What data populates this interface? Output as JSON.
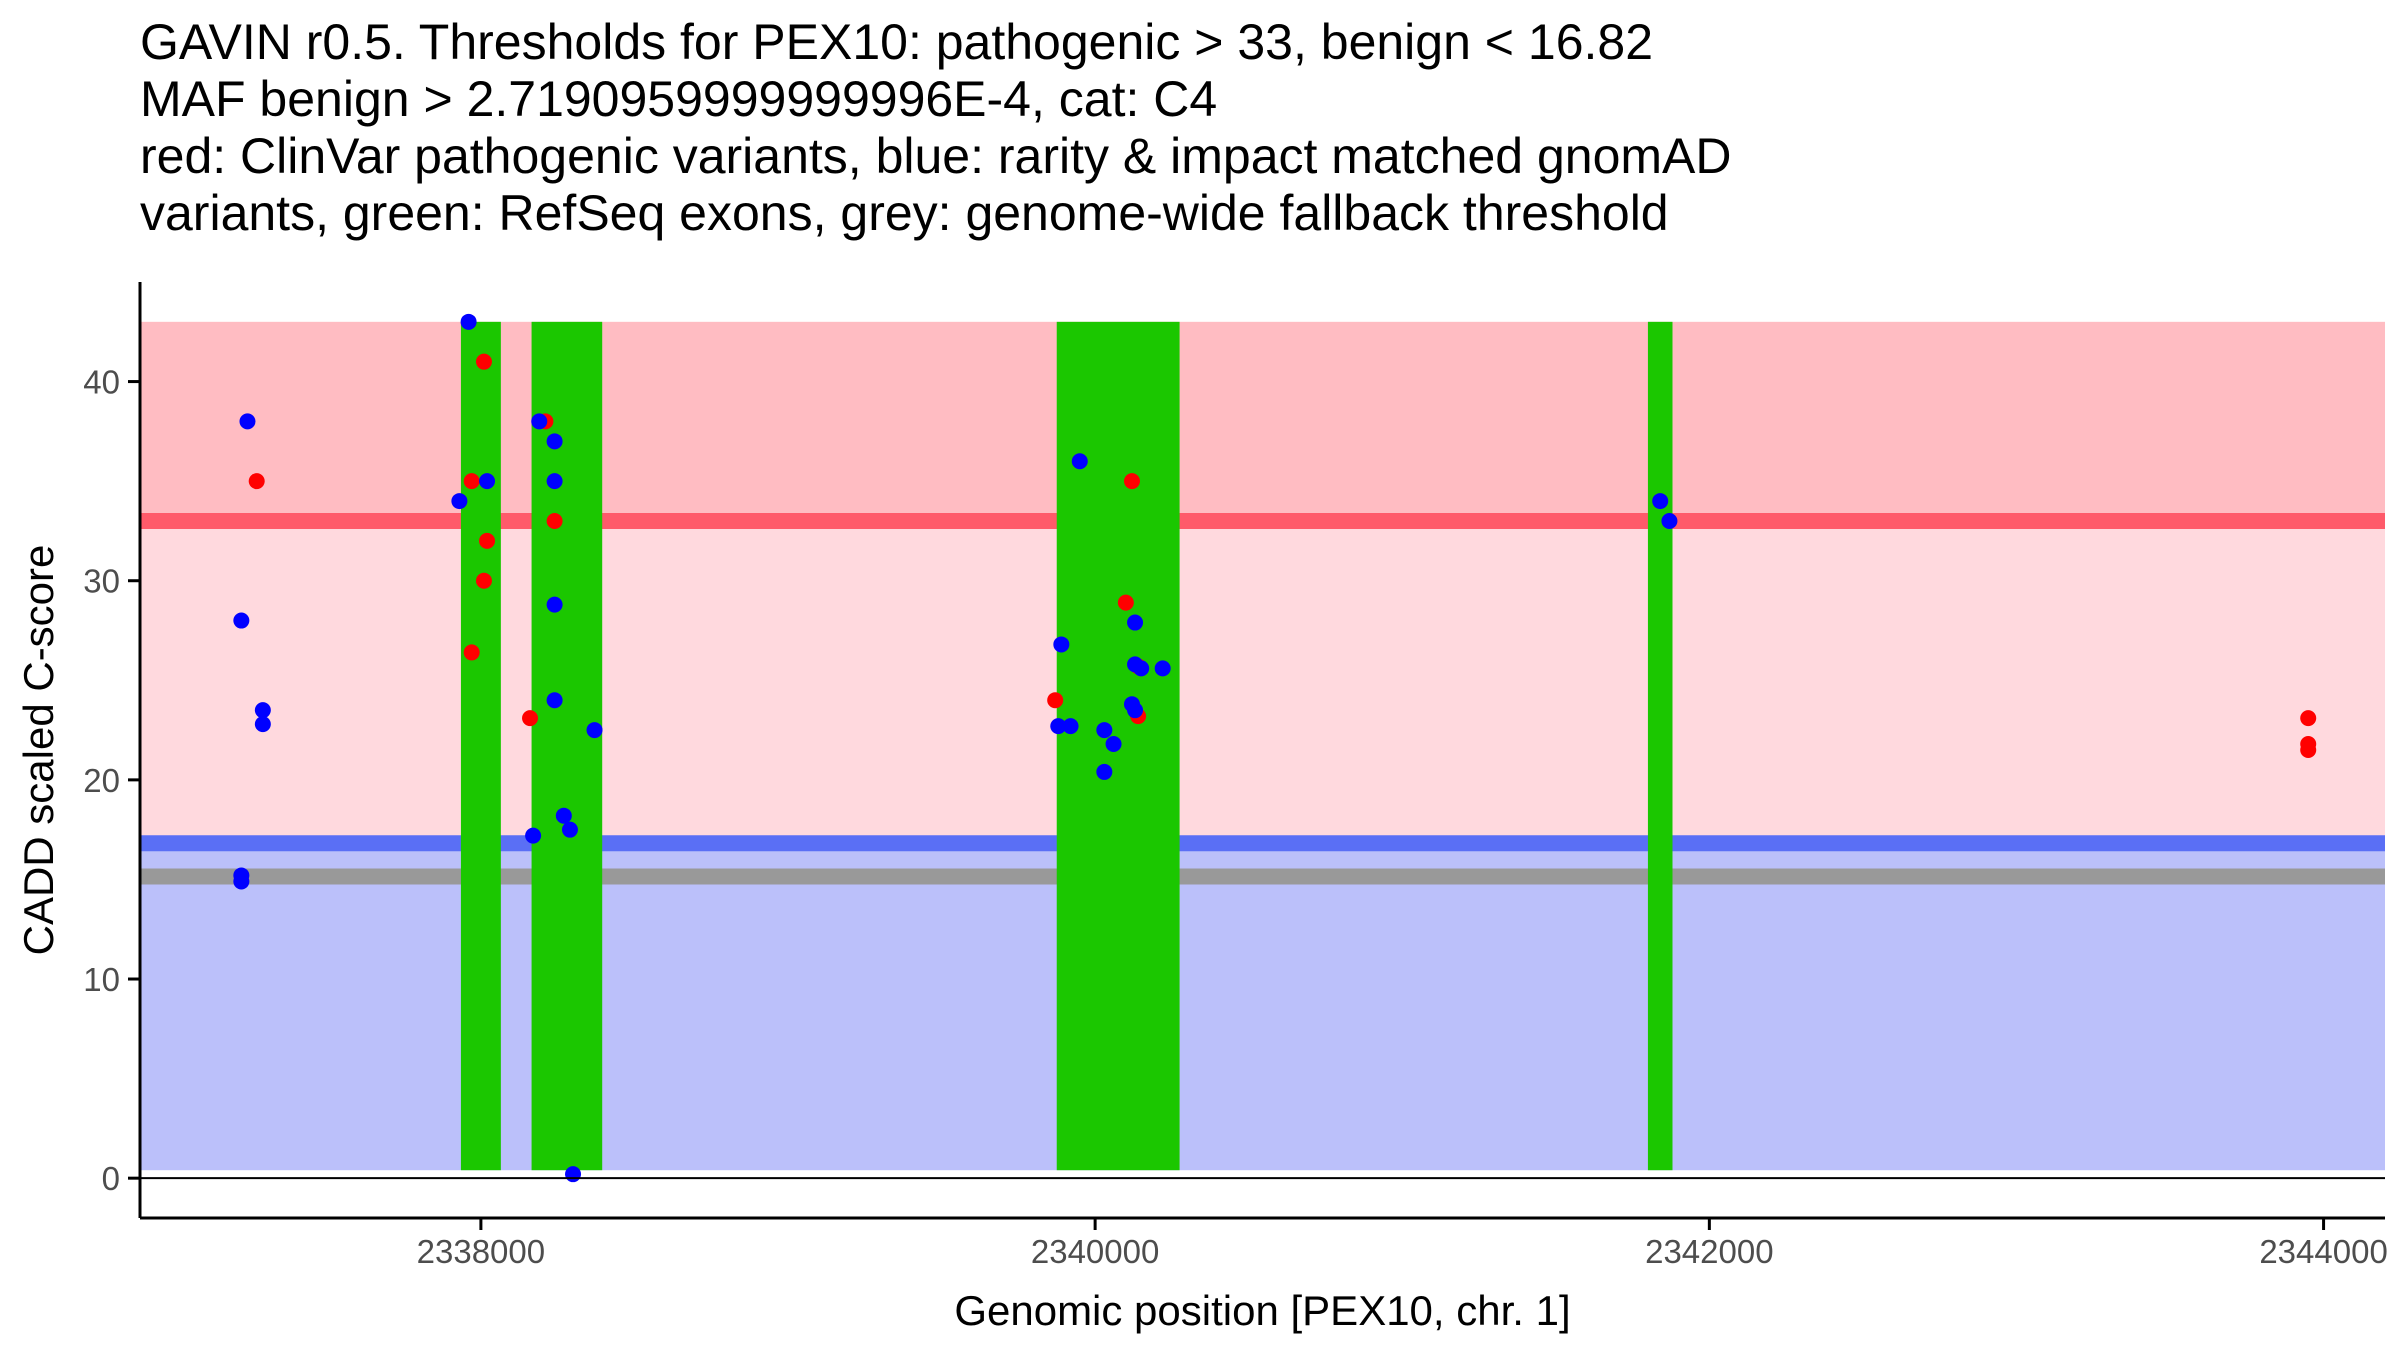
{
  "chart_data": {
    "type": "scatter",
    "title_lines": [
      "GAVIN r0.5. Thresholds for PEX10: pathogenic > 33, benign < 16.82",
      "MAF benign > 2.7190959999999996E-4, cat: C4",
      "red: ClinVar pathogenic variants, blue: rarity & impact matched gnomAD",
      "variants, green: RefSeq exons, grey: genome-wide fallback threshold"
    ],
    "xlabel": "Genomic position [PEX10, chr. 1]",
    "ylabel": "CADD scaled C-score",
    "xlim": [
      2336890,
      2344200
    ],
    "ylim": [
      -2.0,
      45.0
    ],
    "xticks": [
      2338000,
      2340000,
      2342000,
      2344000
    ],
    "xtick_labels": [
      "2338000",
      "2340000",
      "2342000",
      "2344000"
    ],
    "yticks": [
      0,
      10,
      20,
      30,
      40
    ],
    "ytick_labels": [
      "0",
      "10",
      "20",
      "30",
      "40"
    ],
    "thresholds": {
      "pathogenic": 33,
      "benign": 16.82,
      "fallback": 15.15
    },
    "bands": [
      {
        "name": "pathogenic-zone",
        "y0": 33,
        "y1": 43,
        "color": "#FFBCC2"
      },
      {
        "name": "uncertain-zone",
        "y0": 16.82,
        "y1": 33,
        "color": "#FFD9DE"
      },
      {
        "name": "benign-zone",
        "y0": 0.4,
        "y1": 16.82,
        "color": "#BBC0FA"
      }
    ],
    "exons": [
      {
        "start": 2337935,
        "end": 2338065
      },
      {
        "start": 2338165,
        "end": 2338395
      },
      {
        "start": 2339875,
        "end": 2340275
      },
      {
        "start": 2341800,
        "end": 2341880
      }
    ],
    "series": [
      {
        "name": "ClinVar pathogenic variants",
        "color": "#FF0000",
        "points": [
          [
            2337270,
            35
          ],
          [
            2337970,
            35
          ],
          [
            2338010,
            41
          ],
          [
            2338020,
            32
          ],
          [
            2338010,
            30
          ],
          [
            2337970,
            26.4
          ],
          [
            2338160,
            23.1
          ],
          [
            2338210,
            38
          ],
          [
            2338240,
            33
          ],
          [
            2339870,
            24
          ],
          [
            2340100,
            28.9
          ],
          [
            2340120,
            35
          ],
          [
            2340140,
            25.7
          ],
          [
            2340140,
            23.2
          ],
          [
            2343950,
            23.1
          ],
          [
            2343950,
            21.8
          ],
          [
            2343950,
            21.5
          ]
        ]
      },
      {
        "name": "rarity & impact matched gnomAD variants",
        "color": "#0000FF",
        "points": [
          [
            2337240,
            38
          ],
          [
            2337220,
            28
          ],
          [
            2337290,
            23.5
          ],
          [
            2337290,
            22.8
          ],
          [
            2337220,
            15.2
          ],
          [
            2337220,
            14.9
          ],
          [
            2337960,
            43
          ],
          [
            2337930,
            34
          ],
          [
            2338020,
            35
          ],
          [
            2338190,
            38
          ],
          [
            2338240,
            37
          ],
          [
            2338240,
            35
          ],
          [
            2338240,
            28.8
          ],
          [
            2338240,
            24
          ],
          [
            2338170,
            17.2
          ],
          [
            2338270,
            18.2
          ],
          [
            2338290,
            17.5
          ],
          [
            2338370,
            22.5
          ],
          [
            2338300,
            0.2
          ],
          [
            2339950,
            36
          ],
          [
            2339890,
            26.8
          ],
          [
            2339880,
            22.7
          ],
          [
            2339920,
            22.7
          ],
          [
            2340030,
            22.5
          ],
          [
            2340060,
            21.8
          ],
          [
            2340030,
            20.4
          ],
          [
            2340130,
            27.9
          ],
          [
            2340130,
            25.8
          ],
          [
            2340150,
            25.6
          ],
          [
            2340220,
            25.6
          ],
          [
            2340120,
            23.8
          ],
          [
            2340130,
            23.5
          ],
          [
            2341840,
            34
          ],
          [
            2341870,
            33
          ]
        ]
      }
    ]
  },
  "colors": {
    "pathogenic_line": "#FF5A6A",
    "benign_line": "#5A6FF5",
    "fallback_line": "#999999",
    "exon": "#1BC700",
    "axis": "#000000",
    "tick_label": "#4D4D4D"
  }
}
